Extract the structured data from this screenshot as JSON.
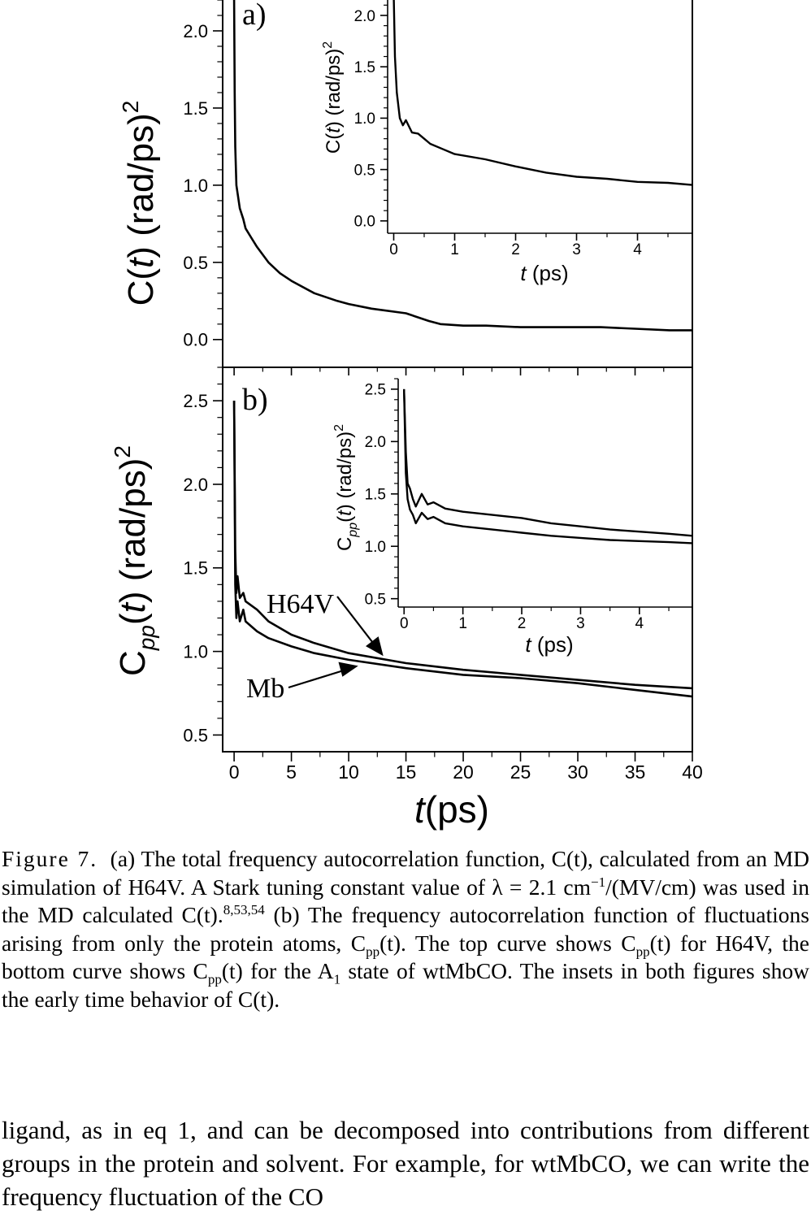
{
  "figure": {
    "x_label_var": "t",
    "x_label_unit": "(ps)",
    "x_ticks": [
      "0",
      "5",
      "10",
      "15",
      "20",
      "25",
      "30",
      "35",
      "40"
    ]
  },
  "chart_data": [
    {
      "id": "panel-a",
      "type": "line",
      "panel_label": "a)",
      "ylabel": "C(t) (rad/ps)²",
      "ylabel_parts": {
        "main": "C(",
        "var": "t",
        "rest": ") (rad/ps)",
        "sup": "2"
      },
      "xlim": [
        -1,
        40
      ],
      "ylim": [
        -0.18,
        2.2
      ],
      "y_ticks": [
        "0.0",
        "0.5",
        "1.0",
        "1.5",
        "2.0"
      ],
      "series": [
        {
          "x": [
            0,
            0.05,
            0.1,
            0.2,
            0.3,
            0.5,
            0.8,
            1,
            1.5,
            2,
            3,
            4,
            5,
            7,
            9,
            10,
            12,
            15,
            17,
            18,
            20,
            22,
            25,
            28,
            30,
            32,
            35,
            38,
            40
          ],
          "y": [
            2.2,
            1.6,
            1.25,
            1.0,
            0.95,
            0.85,
            0.78,
            0.72,
            0.66,
            0.6,
            0.5,
            0.43,
            0.38,
            0.3,
            0.25,
            0.23,
            0.2,
            0.17,
            0.12,
            0.1,
            0.09,
            0.09,
            0.08,
            0.08,
            0.08,
            0.08,
            0.07,
            0.06,
            0.06
          ]
        }
      ]
    },
    {
      "id": "panel-a-inset",
      "type": "line",
      "ylabel": "C(t) (rad/ps)²",
      "ylabel_parts": {
        "main": "C(",
        "var": "t",
        "rest": ") (rad/ps)",
        "sup": "2"
      },
      "xlabel_parts": {
        "var": "t",
        "rest": " (ps)"
      },
      "xlim": [
        -0.1,
        4.9
      ],
      "ylim": [
        -0.12,
        2.15
      ],
      "x_ticks": [
        "0",
        "1",
        "2",
        "3",
        "4"
      ],
      "y_ticks": [
        "0.0",
        "0.5",
        "1.0",
        "1.5",
        "2.0"
      ],
      "series": [
        {
          "x": [
            0,
            0.02,
            0.05,
            0.1,
            0.15,
            0.2,
            0.3,
            0.4,
            0.5,
            0.6,
            0.8,
            1.0,
            1.5,
            2.0,
            2.5,
            3.0,
            3.5,
            4.0,
            4.5,
            4.9
          ],
          "y": [
            2.2,
            1.6,
            1.25,
            1.0,
            0.93,
            0.98,
            0.86,
            0.85,
            0.8,
            0.75,
            0.7,
            0.65,
            0.6,
            0.53,
            0.47,
            0.43,
            0.41,
            0.38,
            0.37,
            0.35
          ]
        }
      ]
    },
    {
      "id": "panel-b",
      "type": "line",
      "panel_label": "b)",
      "ylabel": "Cpp(t) (rad/ps)²",
      "ylabel_parts": {
        "main": "C",
        "sub": "pp",
        "paren": "(",
        "var": "t",
        "rest": ") (rad/ps)",
        "sup": "2"
      },
      "xlim": [
        -1,
        40
      ],
      "ylim": [
        0.4,
        2.7
      ],
      "y_ticks": [
        "0.5",
        "1.0",
        "1.5",
        "2.0",
        "2.5"
      ],
      "series": [
        {
          "name": "H64V",
          "x": [
            0,
            0.1,
            0.2,
            0.3,
            0.5,
            0.8,
            1,
            2,
            3,
            5,
            7,
            10,
            15,
            20,
            25,
            30,
            35,
            40
          ],
          "y": [
            2.5,
            1.6,
            1.35,
            1.45,
            1.32,
            1.35,
            1.3,
            1.25,
            1.18,
            1.1,
            1.05,
            0.99,
            0.93,
            0.89,
            0.86,
            0.83,
            0.8,
            0.78
          ]
        },
        {
          "name": "Mb",
          "x": [
            0,
            0.1,
            0.2,
            0.3,
            0.5,
            0.8,
            1,
            2,
            3,
            5,
            7,
            10,
            15,
            20,
            25,
            30,
            35,
            40
          ],
          "y": [
            2.5,
            1.4,
            1.2,
            1.3,
            1.18,
            1.25,
            1.18,
            1.12,
            1.08,
            1.03,
            0.99,
            0.95,
            0.9,
            0.86,
            0.84,
            0.81,
            0.77,
            0.73
          ]
        }
      ],
      "annotations": [
        "H64V",
        "Mb"
      ]
    },
    {
      "id": "panel-b-inset",
      "type": "line",
      "ylabel": "Cpp(t) (rad/ps)²",
      "ylabel_parts": {
        "main": "C",
        "sub": "pp",
        "paren": "(",
        "var": "t",
        "rest": ") (rad/ps)",
        "sup": "2"
      },
      "xlabel_parts": {
        "var": "t",
        "rest": " (ps)"
      },
      "xlim": [
        -0.1,
        4.9
      ],
      "ylim": [
        0.42,
        2.6
      ],
      "x_ticks": [
        "0",
        "1",
        "2",
        "3",
        "4"
      ],
      "y_ticks": [
        "0.5",
        "1.0",
        "1.5",
        "2.0",
        "2.5"
      ],
      "series": [
        {
          "name": "H64V",
          "x": [
            0,
            0.03,
            0.06,
            0.1,
            0.15,
            0.2,
            0.3,
            0.4,
            0.5,
            0.7,
            1.0,
            1.5,
            2.0,
            2.5,
            3.0,
            3.5,
            4.0,
            4.5,
            4.9
          ],
          "y": [
            2.5,
            1.9,
            1.6,
            1.55,
            1.45,
            1.38,
            1.5,
            1.4,
            1.42,
            1.36,
            1.33,
            1.3,
            1.27,
            1.22,
            1.19,
            1.16,
            1.14,
            1.12,
            1.1
          ]
        },
        {
          "name": "Mb",
          "x": [
            0,
            0.03,
            0.06,
            0.1,
            0.15,
            0.2,
            0.3,
            0.4,
            0.5,
            0.7,
            1.0,
            1.5,
            2.0,
            2.5,
            3.0,
            3.5,
            4.0,
            4.5,
            4.9
          ],
          "y": [
            2.5,
            1.7,
            1.45,
            1.35,
            1.3,
            1.22,
            1.32,
            1.26,
            1.28,
            1.22,
            1.19,
            1.16,
            1.13,
            1.1,
            1.08,
            1.06,
            1.05,
            1.04,
            1.03
          ]
        }
      ]
    }
  ],
  "caption": {
    "label": "Figure 7.",
    "text_a": "(a) The total frequency autocorrelation function, C(t), calculated from an MD simulation of H64V. A Stark tuning constant value of λ = 2.1 cm",
    "sup_a": "−1",
    "text_b": "/(MV/cm) was used in the MD calculated C(t).",
    "refs": "8,53,54",
    "text_c": " (b) The frequency autocorrelation function of fluctuations arising from only the protein atoms, C",
    "sub_pp": "pp",
    "text_d": "(t). The top curve shows C",
    "text_e": "(t) for H64V, the bottom curve shows C",
    "text_f": "(t) for the A",
    "sub_1": "1",
    "text_g": " state of wtMbCO. The insets in both figures show the early time behavior of C(t)."
  },
  "body_text": "ligand, as in eq 1, and can be decomposed into contributions from different groups in the protein and solvent. For example, for wtMbCO, we can write the frequency fluctuation of the CO"
}
